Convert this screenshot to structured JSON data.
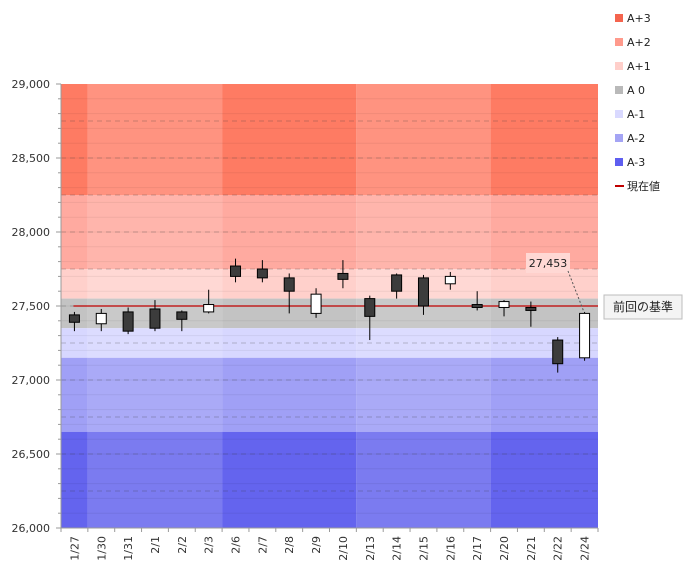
{
  "chart_data": {
    "type": "candlestick",
    "categories": [
      "1/27",
      "1/30",
      "1/31",
      "2/1",
      "2/2",
      "2/3",
      "2/6",
      "2/7",
      "2/8",
      "2/9",
      "2/10",
      "2/13",
      "2/14",
      "2/15",
      "2/16",
      "2/17",
      "2/20",
      "2/21",
      "2/22",
      "2/24"
    ],
    "candles": [
      {
        "date": "1/27",
        "open": 27440,
        "close": 27390,
        "high": 27460,
        "low": 27330
      },
      {
        "date": "1/30",
        "open": 27380,
        "close": 27450,
        "high": 27480,
        "low": 27330
      },
      {
        "date": "1/31",
        "open": 27460,
        "close": 27330,
        "high": 27490,
        "low": 27310
      },
      {
        "date": "2/1",
        "open": 27480,
        "close": 27350,
        "high": 27540,
        "low": 27330
      },
      {
        "date": "2/2",
        "open": 27460,
        "close": 27410,
        "high": 27470,
        "low": 27330
      },
      {
        "date": "2/3",
        "open": 27460,
        "close": 27510,
        "high": 27610,
        "low": 27450
      },
      {
        "date": "2/6",
        "open": 27770,
        "close": 27700,
        "high": 27820,
        "low": 27660
      },
      {
        "date": "2/7",
        "open": 27750,
        "close": 27690,
        "high": 27810,
        "low": 27660
      },
      {
        "date": "2/8",
        "open": 27690,
        "close": 27600,
        "high": 27720,
        "low": 27450
      },
      {
        "date": "2/9",
        "open": 27450,
        "close": 27580,
        "high": 27620,
        "low": 27420
      },
      {
        "date": "2/10",
        "open": 27720,
        "close": 27680,
        "high": 27810,
        "low": 27620
      },
      {
        "date": "2/13",
        "open": 27550,
        "close": 27430,
        "high": 27570,
        "low": 27270
      },
      {
        "date": "2/14",
        "open": 27710,
        "close": 27600,
        "high": 27720,
        "low": 27550
      },
      {
        "date": "2/15",
        "open": 27690,
        "close": 27500,
        "high": 27710,
        "low": 27440
      },
      {
        "date": "2/16",
        "open": 27650,
        "close": 27700,
        "high": 27730,
        "low": 27610
      },
      {
        "date": "2/17",
        "open": 27510,
        "close": 27490,
        "high": 27600,
        "low": 27470
      },
      {
        "date": "2/20",
        "open": 27490,
        "close": 27530,
        "high": 27540,
        "low": 27430
      },
      {
        "date": "2/21",
        "open": 27490,
        "close": 27470,
        "high": 27530,
        "low": 27360
      },
      {
        "date": "2/22",
        "open": 27270,
        "close": 27110,
        "high": 27290,
        "low": 27050
      },
      {
        "date": "2/24",
        "open": 27150,
        "close": 27450,
        "high": 27460,
        "low": 27130
      }
    ],
    "yaxis": {
      "min": 26000,
      "max": 29000,
      "ticks": [
        26000,
        26500,
        27000,
        27500,
        28000,
        28500,
        29000
      ],
      "tick_labels": [
        "26,000",
        "26,500",
        "27,000",
        "27,500",
        "28,000",
        "28,500",
        "29,000"
      ]
    },
    "bands": [
      {
        "label": "A+3",
        "from": 28250,
        "to": 29000,
        "colors": [
          "#fe7b63",
          "#ff9380"
        ]
      },
      {
        "label": "A+2",
        "from": 27750,
        "to": 28250,
        "colors": [
          "#ffaaa0",
          "#ffb5ac"
        ]
      },
      {
        "label": "A+1",
        "from": 27550,
        "to": 27750,
        "colors": [
          "#ffd0cb",
          "#ffd8d4"
        ]
      },
      {
        "label": "A 0",
        "from": 27350,
        "to": 27550,
        "colors": [
          "#c3c3c3",
          "#c9c9c9"
        ]
      },
      {
        "label": "A-1",
        "from": 27150,
        "to": 27350,
        "colors": [
          "#d7d7ff",
          "#dcdcff"
        ]
      },
      {
        "label": "A-2",
        "from": 26650,
        "to": 27150,
        "colors": [
          "#a0a0f6",
          "#aaaaf7"
        ]
      },
      {
        "label": "A-3",
        "from": 26000,
        "to": 26650,
        "colors": [
          "#6464ee",
          "#7b7bf0"
        ]
      }
    ],
    "column_groups": [
      [
        0,
        0
      ],
      [
        1,
        5
      ],
      [
        6,
        10
      ],
      [
        11,
        15
      ],
      [
        16,
        19
      ]
    ],
    "reference_value": 27500,
    "reference_label": "前回の基準",
    "current_value_label": "27,453",
    "current_value": 27453,
    "grid": true,
    "legend_position": "right"
  },
  "legend": {
    "items": [
      {
        "label": "A+3",
        "color": "#f4644e",
        "kind": "box"
      },
      {
        "label": "A+2",
        "color": "#ff9a8c",
        "kind": "box"
      },
      {
        "label": "A+1",
        "color": "#ffcfca",
        "kind": "box"
      },
      {
        "label": "A 0",
        "color": "#b9b9b9",
        "kind": "box"
      },
      {
        "label": "A-1",
        "color": "#d9d9ff",
        "kind": "box"
      },
      {
        "label": "A-2",
        "color": "#a4a4f4",
        "kind": "box"
      },
      {
        "label": "A-3",
        "color": "#5e5ef0",
        "kind": "box"
      },
      {
        "label": "現在値",
        "color": "#c00000",
        "kind": "line"
      }
    ]
  }
}
